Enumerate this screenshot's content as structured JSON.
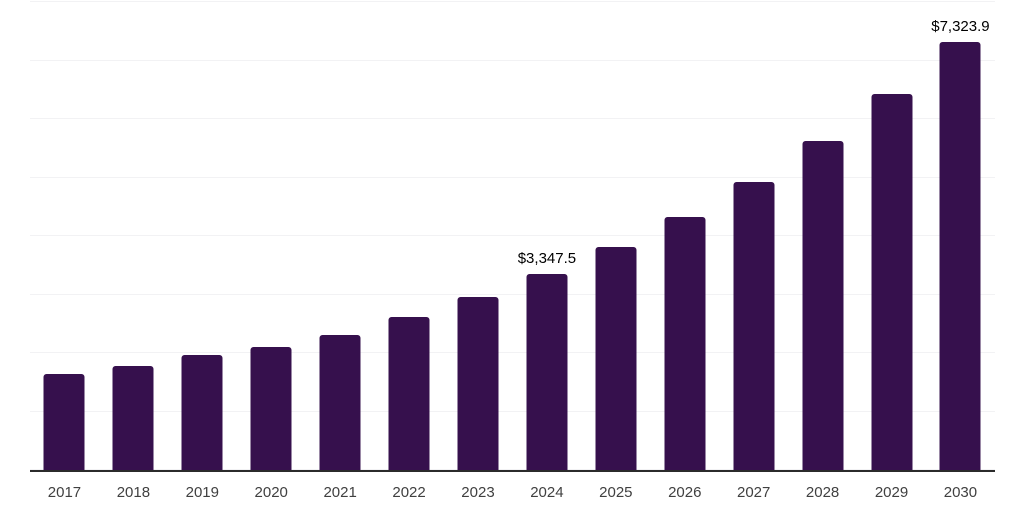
{
  "chart_data": {
    "type": "bar",
    "title": "",
    "xlabel": "",
    "ylabel": "",
    "categories": [
      "2017",
      "2018",
      "2019",
      "2020",
      "2021",
      "2022",
      "2023",
      "2024",
      "2025",
      "2026",
      "2027",
      "2028",
      "2029",
      "2030"
    ],
    "values": [
      1640,
      1780,
      1965,
      2100,
      2310,
      2615,
      2960,
      3347.5,
      3810,
      4330,
      4925,
      5625,
      6430,
      7323.9
    ],
    "annotations": [
      {
        "category": "2024",
        "text": "$3,347.5"
      },
      {
        "category": "2030",
        "text": "$7,323.9"
      }
    ],
    "ylim": [
      0,
      8000
    ],
    "gridline_step": 1000,
    "grid": true,
    "legend": "none",
    "bar_color": "#36104d",
    "grid_color": "#f2f2f4",
    "axis_line_color": "#2b2b2b",
    "x_tick_color": "#404040",
    "data_label_color": "#000000"
  }
}
